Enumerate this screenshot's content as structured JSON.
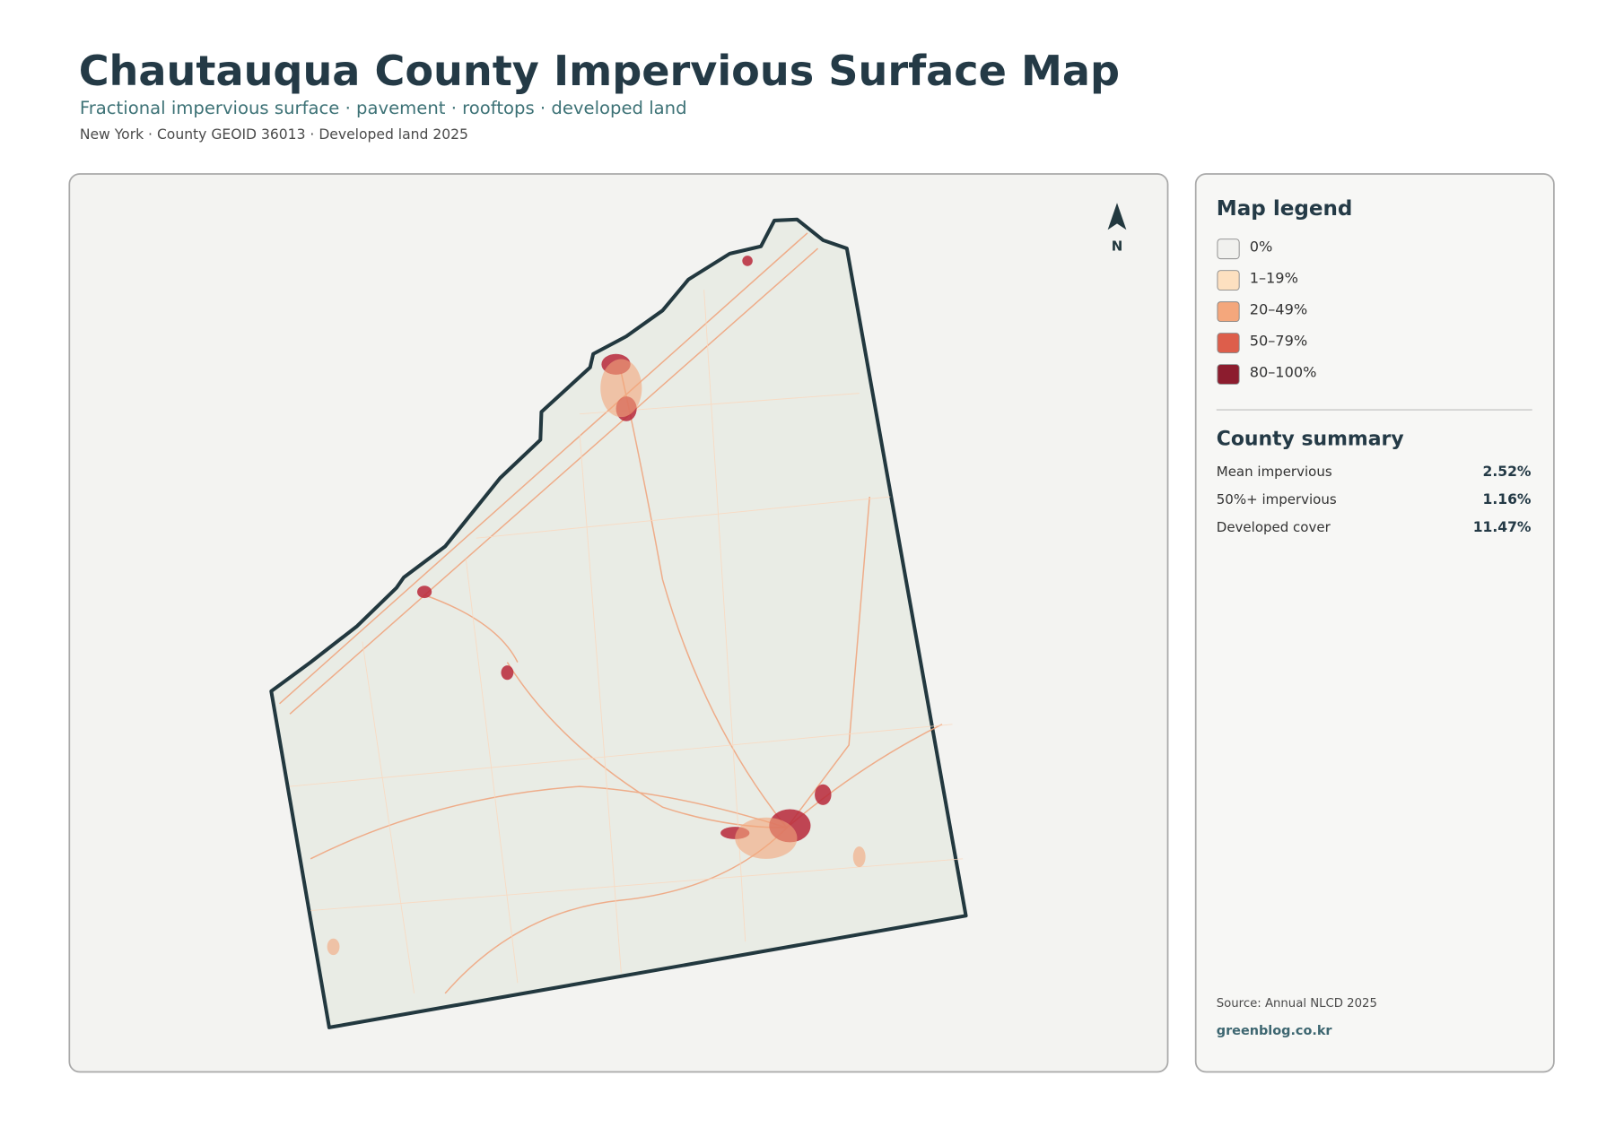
{
  "header": {
    "title": "Chautauqua County Impervious Surface Map",
    "subtitle": "Fractional impervious surface · pavement · rooftops · developed land",
    "meta": "New York · County GEOID 36013 · Developed land 2025"
  },
  "map": {
    "north_label": "N"
  },
  "legend": {
    "title": "Map legend",
    "items": [
      {
        "label": "0%",
        "color": "#f1f1ee"
      },
      {
        "label": "1–19%",
        "color": "#fde0c0"
      },
      {
        "label": "20–49%",
        "color": "#f4a77c"
      },
      {
        "label": "50–79%",
        "color": "#dd5e4b"
      },
      {
        "label": "80–100%",
        "color": "#8c1c2e"
      }
    ]
  },
  "summary": {
    "title": "County summary",
    "rows": [
      {
        "label": "Mean impervious",
        "value": "2.52%"
      },
      {
        "label": "50%+ impervious",
        "value": "1.16%"
      },
      {
        "label": "Developed cover",
        "value": "11.47%"
      }
    ]
  },
  "footer": {
    "source": "Source: Annual NLCD 2025",
    "site": "greenblog.co.kr"
  }
}
